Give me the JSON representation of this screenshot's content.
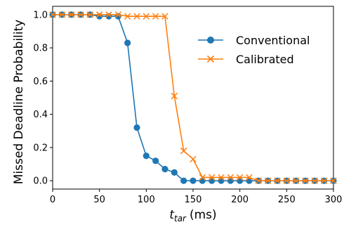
{
  "chart_data": {
    "type": "line",
    "xlabel_base": "t",
    "xlabel_sub": "tar",
    "xlabel_unit": "(ms)",
    "ylabel": "Missed Deadline Probability",
    "xlim": [
      0,
      300
    ],
    "ylim": [
      -0.05,
      1.05
    ],
    "xticks": [
      "0",
      "50",
      "100",
      "150",
      "200",
      "250",
      "300"
    ],
    "yticks": [
      "0.0",
      "0.2",
      "0.4",
      "0.6",
      "0.8",
      "1.0"
    ],
    "grid": false,
    "legend_position": "top-right",
    "series": [
      {
        "name": "Conventional",
        "color": "#1f77b4",
        "marker": "circle",
        "x": [
          0,
          10,
          20,
          30,
          40,
          50,
          60,
          70,
          80,
          90,
          100,
          110,
          120,
          130,
          140,
          150,
          160,
          170,
          180,
          190,
          200,
          210,
          220,
          230,
          240,
          250,
          260,
          270,
          280,
          290,
          300
        ],
        "y": [
          1.0,
          1.0,
          1.0,
          1.0,
          1.0,
          0.99,
          0.99,
          0.99,
          0.83,
          0.32,
          0.15,
          0.12,
          0.07,
          0.05,
          0.0,
          0.0,
          0.0,
          0.0,
          0.0,
          0.0,
          0.0,
          0.0,
          0.0,
          0.0,
          0.0,
          0.0,
          0.0,
          0.0,
          0.0,
          0.0,
          0.0
        ]
      },
      {
        "name": "Calibrated",
        "color": "#ff7f0e",
        "marker": "x",
        "x": [
          0,
          10,
          20,
          30,
          40,
          50,
          60,
          70,
          80,
          90,
          100,
          110,
          120,
          130,
          140,
          150,
          160,
          170,
          180,
          190,
          200,
          210,
          220,
          230,
          240,
          250,
          260,
          270,
          280,
          290,
          300
        ],
        "y": [
          1.0,
          1.0,
          1.0,
          1.0,
          1.0,
          1.0,
          1.0,
          1.0,
          0.99,
          0.99,
          0.99,
          0.99,
          0.99,
          0.51,
          0.18,
          0.13,
          0.02,
          0.02,
          0.02,
          0.02,
          0.02,
          0.02,
          0.0,
          0.0,
          0.0,
          0.0,
          0.0,
          0.0,
          0.0,
          0.0,
          0.0
        ]
      }
    ]
  }
}
